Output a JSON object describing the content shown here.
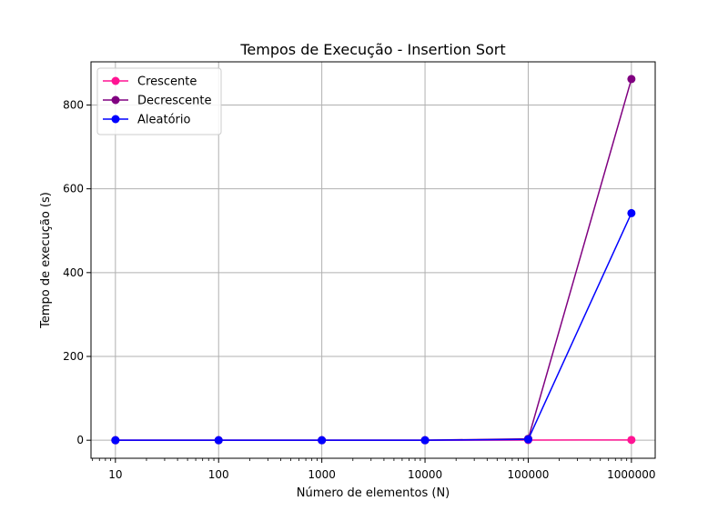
{
  "chart_data": {
    "type": "line",
    "title": "Tempos de Execução - Insertion Sort",
    "xlabel": "Número de elementos (N)",
    "ylabel": "Tempo de execução (s)",
    "x_scale": "log",
    "x": [
      10,
      100,
      1000,
      10000,
      100000,
      1000000
    ],
    "x_tick_labels": [
      "10",
      "100",
      "1000",
      "10000",
      "100000",
      "1000000"
    ],
    "xlim": [
      5.8,
      1700000
    ],
    "ylim": [
      -43,
      903
    ],
    "y_ticks": [
      0,
      200,
      400,
      600,
      800
    ],
    "y_tick_labels": [
      "0",
      "200",
      "400",
      "600",
      "800"
    ],
    "grid": true,
    "legend_position": "upper-left",
    "series": [
      {
        "name": "Crescente",
        "color": "#ff1493",
        "marker": "circle",
        "values": [
          0,
          0,
          0,
          0,
          0.5,
          0.7
        ]
      },
      {
        "name": "Decrescente",
        "color": "#800080",
        "marker": "circle",
        "values": [
          0,
          0,
          0,
          0.1,
          3.5,
          862
        ]
      },
      {
        "name": "Aleatório",
        "color": "#0000ff",
        "marker": "circle",
        "values": [
          0,
          0,
          0,
          0.1,
          2,
          542
        ]
      }
    ]
  }
}
